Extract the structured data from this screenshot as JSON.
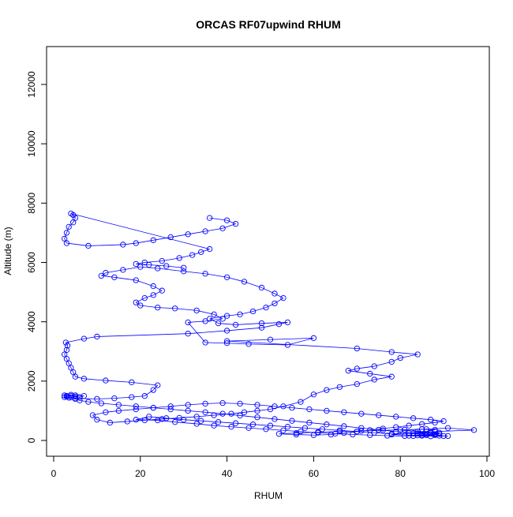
{
  "chart_data": {
    "type": "line",
    "title": "ORCAS RF07upwind RHUM",
    "xlabel": "RHUM",
    "ylabel": "Altitude (m)",
    "xlim": [
      0,
      100
    ],
    "ylim": [
      0,
      12000
    ],
    "x_ticks": [
      0,
      20,
      40,
      60,
      80,
      100
    ],
    "y_ticks": [
      0,
      2000,
      4000,
      6000,
      8000,
      10000,
      12000
    ],
    "grid": false,
    "style": {
      "line_color": "#0000FF",
      "marker": "open-circle"
    },
    "series": [
      {
        "points": [
          [
            90,
            150
          ],
          [
            88,
            200
          ],
          [
            85,
            180
          ],
          [
            82,
            160
          ],
          [
            86,
            210
          ],
          [
            89,
            260
          ],
          [
            84,
            300
          ],
          [
            80,
            350
          ],
          [
            86,
            380
          ],
          [
            91,
            420
          ],
          [
            97,
            350
          ],
          [
            88,
            300
          ],
          [
            83,
            250
          ],
          [
            78,
            220
          ],
          [
            74,
            260
          ],
          [
            70,
            300
          ],
          [
            66,
            340
          ],
          [
            62,
            380
          ],
          [
            58,
            420
          ],
          [
            54,
            460
          ],
          [
            50,
            500
          ],
          [
            46,
            540
          ],
          [
            42,
            580
          ],
          [
            38,
            620
          ],
          [
            34,
            660
          ],
          [
            30,
            700
          ],
          [
            26,
            750
          ],
          [
            22,
            800
          ],
          [
            19,
            700
          ],
          [
            24,
            680
          ],
          [
            28,
            620
          ],
          [
            33,
            560
          ],
          [
            37,
            500
          ],
          [
            41,
            460
          ],
          [
            45,
            420
          ],
          [
            49,
            380
          ],
          [
            53,
            340
          ],
          [
            57,
            300
          ],
          [
            61,
            260
          ],
          [
            65,
            230
          ],
          [
            69,
            200
          ],
          [
            73,
            180
          ],
          [
            77,
            160
          ],
          [
            81,
            150
          ],
          [
            85,
            160
          ],
          [
            88,
            180
          ],
          [
            84,
            240
          ],
          [
            79,
            300
          ],
          [
            75,
            360
          ],
          [
            71,
            420
          ],
          [
            67,
            480
          ],
          [
            63,
            540
          ],
          [
            59,
            600
          ],
          [
            55,
            660
          ],
          [
            51,
            720
          ],
          [
            47,
            780
          ],
          [
            43,
            840
          ],
          [
            39,
            900
          ],
          [
            35,
            950
          ],
          [
            31,
            1000
          ],
          [
            27,
            1050
          ],
          [
            23,
            1100
          ],
          [
            19,
            1150
          ],
          [
            15,
            1200
          ],
          [
            11,
            1250
          ],
          [
            8,
            1300
          ],
          [
            6,
            1350
          ],
          [
            5,
            1400
          ],
          [
            4,
            1450
          ],
          [
            3,
            1500
          ],
          [
            2.5,
            1520
          ],
          [
            3,
            1480
          ],
          [
            4,
            1500
          ],
          [
            5,
            1480
          ],
          [
            6,
            1460
          ],
          [
            7,
            1500
          ],
          [
            5,
            1520
          ],
          [
            4,
            1540
          ],
          [
            3,
            1500
          ],
          [
            2.5,
            1460
          ],
          [
            3.5,
            1440
          ],
          [
            5,
            1420
          ],
          [
            10,
            1400
          ],
          [
            14,
            1420
          ],
          [
            18,
            1460
          ],
          [
            21,
            1500
          ],
          [
            23,
            1700
          ],
          [
            24,
            1860
          ],
          [
            18,
            1960
          ],
          [
            12,
            2020
          ],
          [
            7,
            2080
          ],
          [
            5,
            2150
          ],
          [
            4.5,
            2300
          ],
          [
            4,
            2450
          ],
          [
            3.5,
            2600
          ],
          [
            3,
            2750
          ],
          [
            2.5,
            2900
          ],
          [
            3,
            3050
          ],
          [
            3.2,
            3200
          ],
          [
            2.8,
            3300
          ],
          [
            7,
            3430
          ],
          [
            10,
            3500
          ],
          [
            31,
            3600
          ],
          [
            40,
            3700
          ],
          [
            48,
            3800
          ],
          [
            52,
            3920
          ],
          [
            54,
            3980
          ],
          [
            48,
            3950
          ],
          [
            42,
            3900
          ],
          [
            38,
            3950
          ],
          [
            36,
            4100
          ],
          [
            40,
            4200
          ],
          [
            43,
            4250
          ],
          [
            46,
            4350
          ],
          [
            49,
            4480
          ],
          [
            51,
            4620
          ],
          [
            53,
            4800
          ],
          [
            51,
            4950
          ],
          [
            48,
            5150
          ],
          [
            44,
            5350
          ],
          [
            40,
            5500
          ],
          [
            35,
            5620
          ],
          [
            30,
            5700
          ],
          [
            24,
            5800
          ],
          [
            20,
            5850
          ],
          [
            16,
            5750
          ],
          [
            12,
            5650
          ],
          [
            11,
            5550
          ],
          [
            14,
            5500
          ],
          [
            19,
            5400
          ],
          [
            23,
            5200
          ],
          [
            25,
            5050
          ],
          [
            23,
            4900
          ],
          [
            21,
            4800
          ],
          [
            19,
            4650
          ],
          [
            20,
            4550
          ],
          [
            24,
            4480
          ],
          [
            28,
            4450
          ],
          [
            33,
            4380
          ],
          [
            37,
            4250
          ],
          [
            39,
            4100
          ],
          [
            35,
            4020
          ],
          [
            31,
            3980
          ],
          [
            35,
            3300
          ],
          [
            40,
            3280
          ],
          [
            45,
            3250
          ],
          [
            54,
            3220
          ],
          [
            60,
            3450
          ],
          [
            50,
            3400
          ],
          [
            40,
            3350
          ],
          [
            70,
            3100
          ],
          [
            78,
            2980
          ],
          [
            84,
            2900
          ],
          [
            80,
            2780
          ],
          [
            78,
            2650
          ],
          [
            74,
            2500
          ],
          [
            70,
            2420
          ],
          [
            68,
            2350
          ],
          [
            73,
            2250
          ],
          [
            78,
            2150
          ],
          [
            74,
            2050
          ],
          [
            70,
            1900
          ],
          [
            66,
            1800
          ],
          [
            63,
            1700
          ],
          [
            60,
            1550
          ],
          [
            57,
            1300
          ],
          [
            53,
            1150
          ],
          [
            50,
            1050
          ],
          [
            47,
            1000
          ],
          [
            44,
            950
          ],
          [
            41,
            900
          ],
          [
            37,
            850
          ],
          [
            33,
            800
          ],
          [
            29,
            760
          ],
          [
            25,
            720
          ],
          [
            21,
            680
          ],
          [
            17,
            640
          ],
          [
            13,
            600
          ],
          [
            10,
            700
          ],
          [
            9,
            850
          ],
          [
            12,
            950
          ],
          [
            15,
            1000
          ],
          [
            19,
            1050
          ],
          [
            23,
            1100
          ],
          [
            27,
            1150
          ],
          [
            31,
            1200
          ],
          [
            35,
            1240
          ],
          [
            39,
            1260
          ],
          [
            43,
            1240
          ],
          [
            47,
            1200
          ],
          [
            51,
            1150
          ],
          [
            55,
            1100
          ],
          [
            59,
            1050
          ],
          [
            63,
            1000
          ],
          [
            67,
            950
          ],
          [
            71,
            900
          ],
          [
            75,
            850
          ],
          [
            79,
            800
          ],
          [
            83,
            750
          ],
          [
            87,
            700
          ],
          [
            90,
            650
          ],
          [
            88,
            600
          ],
          [
            85,
            550
          ],
          [
            82,
            500
          ],
          [
            79,
            450
          ],
          [
            76,
            400
          ],
          [
            73,
            350
          ],
          [
            70,
            300
          ],
          [
            67,
            250
          ],
          [
            64,
            200
          ],
          [
            60,
            180
          ],
          [
            56,
            200
          ],
          [
            52,
            220
          ],
          [
            56,
            250
          ],
          [
            61,
            280
          ],
          [
            66,
            300
          ],
          [
            71,
            320
          ],
          [
            76,
            340
          ],
          [
            81,
            360
          ],
          [
            85,
            380
          ],
          [
            88,
            360
          ],
          [
            86,
            300
          ],
          [
            82,
            250
          ],
          [
            78,
            200
          ],
          [
            84,
            170
          ],
          [
            89,
            160
          ],
          [
            91,
            150
          ],
          [
            87,
            140
          ],
          [
            83,
            150
          ],
          [
            86,
            180
          ],
          [
            89,
            220
          ],
          [
            87,
            260
          ],
          [
            84,
            240
          ]
        ]
      },
      {
        "points": [
          [
            36,
            7500
          ],
          [
            40,
            7420
          ],
          [
            42,
            7300
          ],
          [
            39,
            7150
          ],
          [
            35,
            7050
          ],
          [
            31,
            6950
          ],
          [
            27,
            6850
          ],
          [
            23,
            6750
          ],
          [
            19,
            6650
          ],
          [
            16,
            6600
          ],
          [
            8,
            6560
          ],
          [
            3,
            6650
          ],
          [
            2.5,
            6800
          ],
          [
            3,
            7000
          ],
          [
            3.5,
            7200
          ],
          [
            4.5,
            7350
          ],
          [
            5,
            7500
          ],
          [
            4.5,
            7600
          ],
          [
            4,
            7650
          ],
          [
            36,
            6450
          ],
          [
            34,
            6350
          ],
          [
            32,
            6250
          ],
          [
            29,
            6150
          ],
          [
            25,
            6050
          ],
          [
            21,
            6000
          ],
          [
            19,
            5950
          ],
          [
            22,
            5920
          ],
          [
            26,
            5880
          ],
          [
            30,
            5820
          ]
        ]
      }
    ]
  }
}
